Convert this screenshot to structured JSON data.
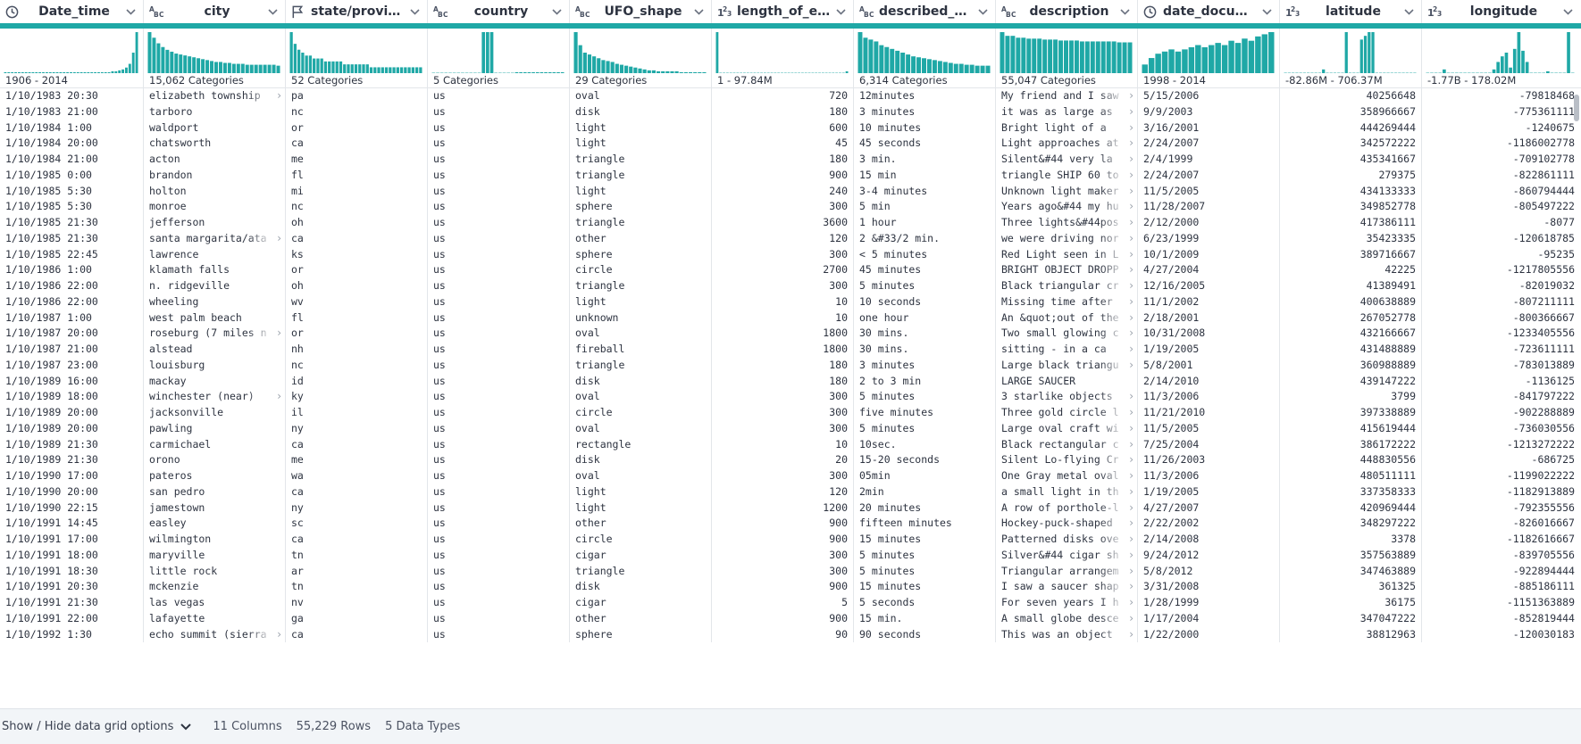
{
  "columns": [
    {
      "name": "Date_time",
      "type": "datetime",
      "type_glyph": "clock-icon",
      "summary": "1906 - 2014"
    },
    {
      "name": "city",
      "type": "string",
      "type_glyph": "abc",
      "summary": "15,062 Categories"
    },
    {
      "name": "state/province",
      "type": "geo",
      "type_glyph": "flag-icon",
      "summary": "52 Categories"
    },
    {
      "name": "country",
      "type": "string",
      "type_glyph": "abc",
      "summary": "5 Categories"
    },
    {
      "name": "UFO_shape",
      "type": "string",
      "type_glyph": "abc",
      "summary": "29 Categories"
    },
    {
      "name": "length_of_enco...",
      "type": "number",
      "type_glyph": "123",
      "summary": "1 - 97.84M"
    },
    {
      "name": "described_dura...",
      "type": "string",
      "type_glyph": "abc",
      "summary": "6,314 Categories"
    },
    {
      "name": "description",
      "type": "string",
      "type_glyph": "abc",
      "summary": "55,047 Categories"
    },
    {
      "name": "date_document...",
      "type": "datetime",
      "type_glyph": "clock-icon",
      "summary": "1998 - 2014"
    },
    {
      "name": "latitude",
      "type": "number",
      "type_glyph": "123",
      "summary": "-82.86M - 706.37M"
    },
    {
      "name": "longitude",
      "type": "number",
      "type_glyph": "123",
      "summary": "-1.77B - 178.02M"
    }
  ],
  "histograms": [
    [
      1,
      1,
      1,
      1,
      1,
      1,
      1,
      1,
      1,
      1,
      1,
      1,
      1,
      1,
      1,
      1,
      1,
      1,
      1,
      1,
      1,
      1,
      1,
      1,
      1,
      1,
      1,
      1,
      1,
      1,
      1,
      2,
      2,
      3,
      4,
      6,
      10,
      22,
      44
    ],
    [
      44,
      38,
      32,
      28,
      25,
      23,
      21,
      20,
      19,
      18,
      17,
      16,
      15,
      14,
      13,
      12,
      12,
      11,
      11,
      10,
      10,
      10,
      9,
      9,
      9,
      9,
      9,
      9,
      9,
      8
    ],
    [
      14,
      10,
      8,
      7,
      6,
      6,
      5,
      5,
      5,
      4,
      4,
      4,
      4,
      4,
      3,
      3,
      3,
      3,
      3,
      3,
      3,
      2,
      2,
      2,
      2,
      2,
      2,
      2,
      2,
      2,
      2,
      2,
      2,
      2,
      2
    ],
    [
      0,
      0,
      0,
      0,
      0,
      0,
      0,
      0,
      0,
      0,
      0,
      0,
      44,
      44,
      44,
      0,
      0,
      0,
      0,
      0,
      1,
      1,
      1,
      1,
      1,
      1,
      1,
      1,
      1,
      1,
      1,
      1
    ],
    [
      44,
      30,
      22,
      20,
      18,
      16,
      14,
      13,
      12,
      10,
      9,
      8,
      7,
      6,
      5,
      4,
      3,
      3,
      2,
      2,
      2,
      2,
      2,
      1,
      1,
      1,
      1,
      1,
      1
    ],
    [
      44,
      0,
      0,
      0,
      0,
      0,
      0,
      0,
      0,
      0,
      0,
      0,
      0,
      0,
      0,
      0,
      0,
      0,
      0,
      0,
      0,
      0,
      0,
      0,
      0,
      0,
      0,
      0,
      0,
      0,
      0,
      0,
      0,
      0,
      0,
      0,
      0,
      0,
      2
    ],
    [
      44,
      38,
      36,
      34,
      30,
      28,
      26,
      24,
      22,
      20,
      18,
      17,
      16,
      15,
      14,
      13,
      12,
      11,
      10,
      10,
      9,
      9,
      8,
      8,
      8
    ],
    [
      44,
      40,
      40,
      38,
      38,
      37,
      37,
      37,
      36,
      36,
      36,
      35,
      35,
      35,
      35,
      34,
      34,
      34,
      34,
      34,
      34,
      34,
      33,
      33,
      33
    ],
    [
      8,
      14,
      18,
      20,
      22,
      20,
      22,
      24,
      26,
      24,
      26,
      28,
      26,
      30,
      28,
      32,
      30,
      34,
      36,
      38
    ],
    [
      0,
      0,
      0,
      0,
      0,
      0,
      0,
      0,
      0,
      0,
      4,
      0,
      0,
      0,
      0,
      0,
      44,
      0,
      0,
      0,
      36,
      40,
      44,
      44,
      0,
      0,
      0,
      0,
      0,
      0,
      0,
      0,
      0,
      0,
      0
    ],
    [
      0,
      0,
      0,
      0,
      4,
      0,
      0,
      0,
      0,
      0,
      0,
      0,
      0,
      0,
      0,
      0,
      4,
      12,
      18,
      22,
      6,
      26,
      44,
      24,
      12,
      0,
      0,
      0,
      0,
      2,
      0,
      0,
      0,
      0,
      44,
      0
    ]
  ],
  "rows": [
    [
      "1/10/1983 20:30",
      "elizabeth township",
      "pa",
      "us",
      "oval",
      "720",
      "12minutes",
      "My friend and I saw",
      "5/15/2006",
      "40256648",
      "-79818468"
    ],
    [
      "1/10/1983 21:00",
      "tarboro",
      "nc",
      "us",
      "disk",
      "180",
      "3 minutes",
      "it was as large as",
      "9/9/2003",
      "358966667",
      "-775361111"
    ],
    [
      "1/10/1984 1:00",
      "waldport",
      "or",
      "us",
      "light",
      "600",
      "10 minutes",
      "Bright light of a",
      "3/16/2001",
      "444269444",
      "-1240675"
    ],
    [
      "1/10/1984 20:00",
      "chatsworth",
      "ca",
      "us",
      "light",
      "45",
      "45 seconds",
      "Light approaches at",
      "2/24/2007",
      "342572222",
      "-1186002778"
    ],
    [
      "1/10/1984 21:00",
      "acton",
      "me",
      "us",
      "triangle",
      "180",
      "3 min.",
      "Silent&#44 very la",
      "2/4/1999",
      "435341667",
      "-709102778"
    ],
    [
      "1/10/1985 0:00",
      "brandon",
      "fl",
      "us",
      "triangle",
      "900",
      "15 min",
      "triangle SHIP 60 to",
      "2/24/2007",
      "279375",
      "-822861111"
    ],
    [
      "1/10/1985 5:30",
      "holton",
      "mi",
      "us",
      "light",
      "240",
      "3-4 minutes",
      "Unknown light maker",
      "11/5/2005",
      "434133333",
      "-860794444"
    ],
    [
      "1/10/1985 5:30",
      "monroe",
      "nc",
      "us",
      "sphere",
      "300",
      "5 min",
      "Years ago&#44 my hu",
      "11/28/2007",
      "349852778",
      "-805497222"
    ],
    [
      "1/10/1985 21:30",
      "jefferson",
      "oh",
      "us",
      "triangle",
      "3600",
      "1 hour",
      "Three lights&#44pos",
      "2/12/2000",
      "417386111",
      "-8077"
    ],
    [
      "1/10/1985 21:30",
      "santa margarita/ata",
      "ca",
      "us",
      "other",
      "120",
      "2 &#33/2  min.",
      "we were driving nor",
      "6/23/1999",
      "35423335",
      "-120618785"
    ],
    [
      "1/10/1985 22:45",
      "lawrence",
      "ks",
      "us",
      "sphere",
      "300",
      "< 5 minutes",
      "Red Light seen in L",
      "10/1/2009",
      "389716667",
      "-95235"
    ],
    [
      "1/10/1986 1:00",
      "klamath falls",
      "or",
      "us",
      "circle",
      "2700",
      "45 minutes",
      "BRIGHT OBJECT DROPP",
      "4/27/2004",
      "42225",
      "-1217805556"
    ],
    [
      "1/10/1986 22:00",
      "n. ridgeville",
      "oh",
      "us",
      "triangle",
      "300",
      "5 minutes",
      "Black triangular cr",
      "12/16/2005",
      "41389491",
      "-82019032"
    ],
    [
      "1/10/1986 22:00",
      "wheeling",
      "wv",
      "us",
      "light",
      "10",
      "10 seconds",
      "Missing time after",
      "11/1/2002",
      "400638889",
      "-807211111"
    ],
    [
      "1/10/1987 1:00",
      "west palm beach",
      "fl",
      "us",
      "unknown",
      "10",
      "one hour",
      "An &quot;out of the",
      "2/18/2001",
      "267052778",
      "-800366667"
    ],
    [
      "1/10/1987 20:00",
      "roseburg (7 miles n",
      "or",
      "us",
      "oval",
      "1800",
      "30 mins.",
      "Two small glowing c",
      "10/31/2008",
      "432166667",
      "-1233405556"
    ],
    [
      "1/10/1987 21:00",
      "alstead",
      "nh",
      "us",
      "fireball",
      "1800",
      "30 mins.",
      "sitting - in  a ca",
      "1/19/2005",
      "431488889",
      "-723611111"
    ],
    [
      "1/10/1987 23:00",
      "louisburg",
      "nc",
      "us",
      "triangle",
      "180",
      "3 minutes",
      "Large black triangu",
      "5/8/2001",
      "360988889",
      "-783013889"
    ],
    [
      "1/10/1989 16:00",
      "mackay",
      "id",
      "us",
      "disk",
      "180",
      "2 to 3 min",
      "LARGE SAUCER",
      "2/14/2010",
      "439147222",
      "-1136125"
    ],
    [
      "1/10/1989 18:00",
      "winchester (near)",
      "ky",
      "us",
      "oval",
      "300",
      "5 minutes",
      "3 starlike objects",
      "11/3/2006",
      "3799",
      "-841797222"
    ],
    [
      "1/10/1989 20:00",
      "jacksonville",
      "il",
      "us",
      "circle",
      "300",
      "five minutes",
      "Three gold circle l",
      "11/21/2010",
      "397338889",
      "-902288889"
    ],
    [
      "1/10/1989 20:00",
      "pawling",
      "ny",
      "us",
      "oval",
      "300",
      "5 minutes",
      "Large oval craft wi",
      "11/5/2005",
      "415619444",
      "-736030556"
    ],
    [
      "1/10/1989 21:30",
      "carmichael",
      "ca",
      "us",
      "rectangle",
      "10",
      "10sec.",
      "Black rectangular c",
      "7/25/2004",
      "386172222",
      "-1213272222"
    ],
    [
      "1/10/1989 21:30",
      "orono",
      "me",
      "us",
      "disk",
      "20",
      "15-20 seconds",
      "Silent Lo-flying Cr",
      "11/26/2003",
      "448830556",
      "-686725"
    ],
    [
      "1/10/1990 17:00",
      "pateros",
      "wa",
      "us",
      "oval",
      "300",
      "05min",
      "One Gray metal oval",
      "11/3/2006",
      "480511111",
      "-1199022222"
    ],
    [
      "1/10/1990 20:00",
      "san pedro",
      "ca",
      "us",
      "light",
      "120",
      "2min",
      "a small light in th",
      "1/19/2005",
      "337358333",
      "-1182913889"
    ],
    [
      "1/10/1990 22:15",
      "jamestown",
      "ny",
      "us",
      "light",
      "1200",
      "20 minutes",
      "A row of porthole-l",
      "4/27/2007",
      "420969444",
      "-792355556"
    ],
    [
      "1/10/1991 14:45",
      "easley",
      "sc",
      "us",
      "other",
      "900",
      "fifteen minutes",
      "Hockey-puck-shaped",
      "2/22/2002",
      "348297222",
      "-826016667"
    ],
    [
      "1/10/1991 17:00",
      "wilmington",
      "ca",
      "us",
      "circle",
      "900",
      "15 minutes",
      "Patterned disks ove",
      "2/14/2008",
      "3378",
      "-1182616667"
    ],
    [
      "1/10/1991 18:00",
      "maryville",
      "tn",
      "us",
      "cigar",
      "300",
      "5 minutes",
      "Silver&#44 cigar sh",
      "9/24/2012",
      "357563889",
      "-839705556"
    ],
    [
      "1/10/1991 18:30",
      "little rock",
      "ar",
      "us",
      "triangle",
      "300",
      "5 minutes",
      "Triangular arrangem",
      "5/8/2012",
      "347463889",
      "-922894444"
    ],
    [
      "1/10/1991 20:30",
      "mckenzie",
      "tn",
      "us",
      "disk",
      "900",
      "15 minutes",
      "I saw a saucer shap",
      "3/31/2008",
      "361325",
      "-885186111"
    ],
    [
      "1/10/1991 21:30",
      "las vegas",
      "nv",
      "us",
      "cigar",
      "5",
      "5 seconds",
      "For seven years I h",
      "1/28/1999",
      "36175",
      "-1151363889"
    ],
    [
      "1/10/1991 22:00",
      "lafayette",
      "ga",
      "us",
      "other",
      "900",
      "15 min.",
      "A small globe desce",
      "1/17/2004",
      "347047222",
      "-852819444"
    ],
    [
      "1/10/1992 1:30",
      "echo summit (sierra",
      "ca",
      "us",
      "sphere",
      "90",
      "90 seconds",
      "This was an object",
      "1/22/2000",
      "38812963",
      "-120030183"
    ]
  ],
  "footer": {
    "options_label": "Show / Hide data grid options",
    "columns_label": "11 Columns",
    "rows_label": "55,229 Rows",
    "types_label": "5 Data Types"
  },
  "colors": {
    "accent": "#1fa8a6",
    "grid_line": "#e3e6ea",
    "footer_bg": "#f2f5f8"
  }
}
